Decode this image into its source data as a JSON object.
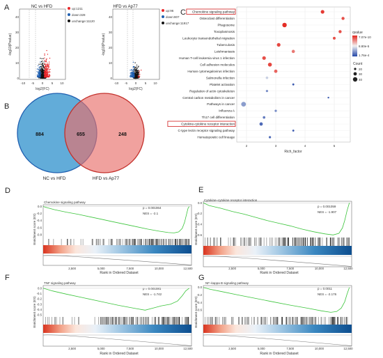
{
  "panel_labels": [
    "A",
    "B",
    "C",
    "D",
    "E",
    "F",
    "G"
  ],
  "chart_data": [
    {
      "type": "scatter",
      "title": "NC vs HFD",
      "xlabel": "log2(FC)",
      "ylabel": "-log10(Pvalue)",
      "xlim": [
        -12,
        12
      ],
      "ylim": [
        0,
        45
      ],
      "x_ticks": [
        -10,
        -5,
        0,
        5,
        10
      ],
      "y_ticks": [
        0,
        10,
        20,
        30,
        40
      ],
      "series": [
        {
          "name": "up:1211",
          "color": "#e8272a"
        },
        {
          "name": "down:328",
          "color": "#1f5fb0"
        },
        {
          "name": "unchange:11120",
          "color": "#111111"
        }
      ],
      "grid": false
    },
    {
      "type": "scatter",
      "title": "HFD vs Ap77",
      "xlabel": "log2(FC)",
      "ylabel": "-log10(Pvalue)",
      "xlim": [
        -12,
        12
      ],
      "ylim": [
        0,
        45
      ],
      "x_ticks": [
        -10,
        -5,
        0,
        5,
        10
      ],
      "y_ticks": [
        0,
        10,
        20,
        30,
        40
      ],
      "series": [
        {
          "name": "up:96",
          "color": "#e8272a"
        },
        {
          "name": "down:807",
          "color": "#1f5fb0"
        },
        {
          "name": "unchange:11917",
          "color": "#111111"
        }
      ],
      "grid": false
    },
    {
      "type": "venn",
      "sets": [
        {
          "name": "NC vs HFD",
          "only": 884,
          "color": "#3b97cf"
        },
        {
          "name": "HFD vs Ap77",
          "only": 248,
          "color": "#e86f6a"
        }
      ],
      "intersection": 655
    },
    {
      "type": "scatter",
      "xlabel": "Rich_factor",
      "xlim": [
        2,
        5.5
      ],
      "x_ticks": [
        2,
        3,
        4,
        5
      ],
      "categories": [
        "Chemokine signaling pathway",
        "Osteoclast differentiation",
        "Phagosome",
        "Toxoplasmosis",
        "Leukocyte transendothelial migration",
        "Tuberculosis",
        "Leishmaniasis",
        "Human T-cell leukemia virus 1 infection",
        "Cell adhesion molecules",
        "Human cytomegalovirus infection",
        "Salmonella infection",
        "Platelet activation",
        "Regulation of actin cytoskeleton",
        "Central carbon metabolism in cancer",
        "Pathways in cancer",
        "Influenza A",
        "Th17 cell differentiation",
        "Cytokine-cytokine receptor interaction",
        "C-type lectin receptor signaling pathway",
        "Hematopoietic cell lineage"
      ],
      "highlighted": [
        "Chemokine signaling pathway",
        "Cytokine-cytokine receptor interaction"
      ],
      "rich_factor": [
        4.6,
        5.3,
        3.3,
        5.2,
        5.0,
        3.1,
        3.6,
        2.6,
        2.8,
        3.0,
        2.7,
        3.6,
        2.7,
        4.8,
        1.9,
        3.0,
        2.6,
        2.5,
        3.6,
        2.8
      ],
      "count": [
        34,
        30,
        40,
        30,
        28,
        34,
        31,
        34,
        36,
        32,
        26,
        22,
        24,
        20,
        42,
        24,
        26,
        32,
        22,
        24
      ],
      "qvalue_level": [
        0.05,
        0.1,
        0.02,
        0.1,
        0.1,
        0.08,
        0.2,
        0.1,
        0.08,
        0.15,
        0.6,
        0.95,
        0.8,
        0.95,
        0.75,
        0.8,
        0.85,
        0.9,
        0.95,
        0.9
      ],
      "legend": {
        "qvalue_title": "qvalue",
        "qvalue_labels": [
          "7.07e-10",
          "8.80e-5",
          "1.76e-4"
        ],
        "count_title": "Count",
        "count_labels": [
          "20",
          "30",
          "40"
        ]
      }
    },
    {
      "type": "line",
      "title": "Chemokine signaling pathway",
      "ylabel": "Enrichment score (ES)",
      "xlabel": "Rank in Ordered Dataset",
      "p_text": "p = 0.001064",
      "nes_text": "NES = -2.1",
      "x_ticks": [
        "2,500",
        "5,000",
        "7,500",
        "10,000",
        "12,500"
      ],
      "xlim": [
        0,
        12800
      ],
      "ylim": [
        -0.9,
        0.05
      ],
      "y_ticks": [
        "0.0",
        "-0.2",
        "-0.4",
        "-0.6",
        "-0.8"
      ],
      "y_tick_values": [
        0,
        -0.2,
        -0.4,
        -0.6,
        -0.8
      ],
      "curve": [
        [
          0,
          0
        ],
        [
          400,
          -0.04
        ],
        [
          1000,
          -0.09
        ],
        [
          2000,
          -0.16
        ],
        [
          3000,
          -0.22
        ],
        [
          4000,
          -0.29
        ],
        [
          5000,
          -0.36
        ],
        [
          6000,
          -0.43
        ],
        [
          7000,
          -0.5
        ],
        [
          8000,
          -0.57
        ],
        [
          9000,
          -0.64
        ],
        [
          10000,
          -0.7
        ],
        [
          10800,
          -0.74
        ],
        [
          11300,
          -0.75
        ],
        [
          11700,
          -0.72
        ],
        [
          12000,
          -0.62
        ],
        [
          12200,
          -0.45
        ],
        [
          12350,
          -0.25
        ],
        [
          12500,
          -0.05
        ],
        [
          12600,
          0
        ]
      ],
      "hit_band": [
        4200,
        12600
      ]
    },
    {
      "type": "line",
      "title": "Cytokine–cytokine receptor interaction",
      "ylabel": "Enrichment score (ES)",
      "xlabel": "Rank in Ordered Dataset",
      "p_text": "p = 0.001059",
      "nes_text": "NES = -1.907",
      "x_ticks": [
        "2,500",
        "5,000",
        "7,500",
        "10,000",
        "12,500"
      ],
      "xlim": [
        0,
        12800
      ],
      "ylim": [
        -0.7,
        0.03
      ],
      "y_ticks": [
        "0.0",
        "-0.2",
        "-0.4",
        "-0.6"
      ],
      "y_tick_values": [
        0,
        -0.2,
        -0.4,
        -0.6
      ],
      "curve": [
        [
          0,
          0
        ],
        [
          500,
          -0.05
        ],
        [
          1500,
          -0.1
        ],
        [
          2500,
          -0.16
        ],
        [
          3500,
          -0.21
        ],
        [
          4500,
          -0.27
        ],
        [
          5500,
          -0.33
        ],
        [
          6500,
          -0.38
        ],
        [
          7500,
          -0.43
        ],
        [
          8500,
          -0.49
        ],
        [
          9500,
          -0.54
        ],
        [
          10500,
          -0.58
        ],
        [
          11200,
          -0.6
        ],
        [
          11700,
          -0.57
        ],
        [
          12000,
          -0.47
        ],
        [
          12200,
          -0.33
        ],
        [
          12400,
          -0.15
        ],
        [
          12600,
          0
        ]
      ],
      "hit_band": [
        1500,
        12600
      ]
    },
    {
      "type": "line",
      "title": "TNF signaling pathway",
      "ylabel": "Enrichment score (ES)",
      "xlabel": "Rank in Ordered Dataset",
      "p_text": "p = 0.001081",
      "nes_text": "NES = -1.742",
      "x_ticks": [
        "2,500",
        "5,000",
        "7,500",
        "10,000",
        "12,500"
      ],
      "xlim": [
        0,
        12800
      ],
      "ylim": [
        -0.55,
        0.05
      ],
      "y_ticks": [
        "0.0",
        "-0.1",
        "-0.2",
        "-0.3",
        "-0.4",
        "-0.5"
      ],
      "y_tick_values": [
        0,
        -0.1,
        -0.2,
        -0.3,
        -0.4,
        -0.5
      ],
      "curve": [
        [
          0,
          0
        ],
        [
          800,
          -0.05
        ],
        [
          2000,
          -0.11
        ],
        [
          3500,
          -0.18
        ],
        [
          5000,
          -0.25
        ],
        [
          6500,
          -0.32
        ],
        [
          8000,
          -0.38
        ],
        [
          8800,
          -0.41
        ],
        [
          9500,
          -0.37
        ],
        [
          10200,
          -0.33
        ],
        [
          11000,
          -0.3
        ],
        [
          11600,
          -0.24
        ],
        [
          12000,
          -0.14
        ],
        [
          12300,
          -0.05
        ],
        [
          12600,
          0
        ]
      ],
      "hit_band": [
        3000,
        12600
      ]
    },
    {
      "type": "line",
      "title": "NF–kappa B signaling pathway",
      "ylabel": "Enrichment score (ES)",
      "xlabel": "Rank in Ordered Dataset",
      "p_text": "p = 0.0011",
      "nes_text": "NES = -2.176",
      "x_ticks": [
        "2,500",
        "5,000",
        "7,500",
        "10,000",
        "12,500"
      ],
      "xlim": [
        0,
        12800
      ],
      "ylim": [
        -0.8,
        0.05
      ],
      "y_ticks": [
        "0.0",
        "-0.2",
        "-0.4",
        "-0.6"
      ],
      "y_tick_values": [
        0,
        -0.2,
        -0.4,
        -0.6
      ],
      "curve": [
        [
          0,
          0
        ],
        [
          600,
          -0.05
        ],
        [
          1600,
          -0.11
        ],
        [
          3000,
          -0.2
        ],
        [
          4500,
          -0.29
        ],
        [
          6000,
          -0.38
        ],
        [
          7500,
          -0.47
        ],
        [
          9000,
          -0.55
        ],
        [
          10200,
          -0.62
        ],
        [
          11000,
          -0.66
        ],
        [
          11500,
          -0.64
        ],
        [
          11900,
          -0.55
        ],
        [
          12200,
          -0.38
        ],
        [
          12400,
          -0.18
        ],
        [
          12600,
          0
        ]
      ],
      "hit_band": [
        1200,
        12600
      ]
    }
  ]
}
